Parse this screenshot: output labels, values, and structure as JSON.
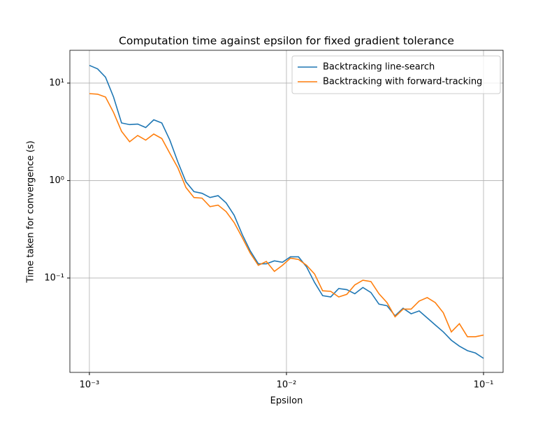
{
  "chart_data": {
    "type": "line",
    "title": "Computation time against epsilon for fixed gradient tolerance",
    "x_label": "Epsilon",
    "y_label": "Time taken for convergence (s)",
    "x": [
      0.001,
      0.0011,
      0.001207,
      0.001326,
      0.001456,
      0.0016,
      0.001758,
      0.001931,
      0.002121,
      0.00233,
      0.00256,
      0.002812,
      0.003089,
      0.003393,
      0.003728,
      0.004095,
      0.004498,
      0.004942,
      0.005429,
      0.005964,
      0.006551,
      0.007197,
      0.007906,
      0.008685,
      0.009541,
      0.01048,
      0.01151,
      0.01265,
      0.01389,
      0.01526,
      0.01677,
      0.01842,
      0.02024,
      0.02223,
      0.02442,
      0.02683,
      0.02947,
      0.03237,
      0.03556,
      0.03907,
      0.04292,
      0.04715,
      0.05179,
      0.0569,
      0.06251,
      0.06866,
      0.07543,
      0.08286,
      0.09103,
      0.1
    ],
    "series": [
      {
        "name": "Backtracking line-search",
        "color": "#1f77b4",
        "values": [
          15.2,
          14,
          11.5,
          7.2,
          3.9,
          3.75,
          3.8,
          3.5,
          4.2,
          3.9,
          2.6,
          1.55,
          0.97,
          0.77,
          0.74,
          0.67,
          0.7,
          0.59,
          0.44,
          0.28,
          0.19,
          0.14,
          0.14,
          0.15,
          0.145,
          0.165,
          0.165,
          0.13,
          0.09,
          0.066,
          0.064,
          0.078,
          0.076,
          0.069,
          0.08,
          0.071,
          0.054,
          0.052,
          0.041,
          0.049,
          0.043,
          0.046,
          0.039,
          0.033,
          0.028,
          0.023,
          0.02,
          0.018,
          0.017,
          0.015
        ]
      },
      {
        "name": "Backtracking with forward-tracking",
        "color": "#ff7f0e",
        "values": [
          7.8,
          7.7,
          7.2,
          5.0,
          3.2,
          2.5,
          2.9,
          2.6,
          3.0,
          2.7,
          1.9,
          1.35,
          0.85,
          0.67,
          0.66,
          0.54,
          0.56,
          0.48,
          0.37,
          0.26,
          0.18,
          0.135,
          0.148,
          0.117,
          0.135,
          0.16,
          0.155,
          0.135,
          0.11,
          0.074,
          0.073,
          0.064,
          0.068,
          0.085,
          0.095,
          0.092,
          0.069,
          0.056,
          0.04,
          0.048,
          0.048,
          0.058,
          0.063,
          0.056,
          0.044,
          0.028,
          0.034,
          0.025,
          0.025,
          0.026
        ]
      }
    ],
    "x_log": true,
    "y_log": true,
    "xlim": [
      0.000796,
      0.1257
    ],
    "ylim": [
      0.01076,
      21.7
    ],
    "xticks": [
      {
        "value": 0.001,
        "label": "10⁻³"
      },
      {
        "value": 0.01,
        "label": "10⁻²"
      },
      {
        "value": 0.1,
        "label": "10⁻¹"
      }
    ],
    "yticks": [
      {
        "value": 0.1,
        "label": "10⁻¹"
      },
      {
        "value": 1,
        "label": "10⁰"
      },
      {
        "value": 10,
        "label": "10¹"
      }
    ],
    "grid": true,
    "legend": "upper-right"
  }
}
